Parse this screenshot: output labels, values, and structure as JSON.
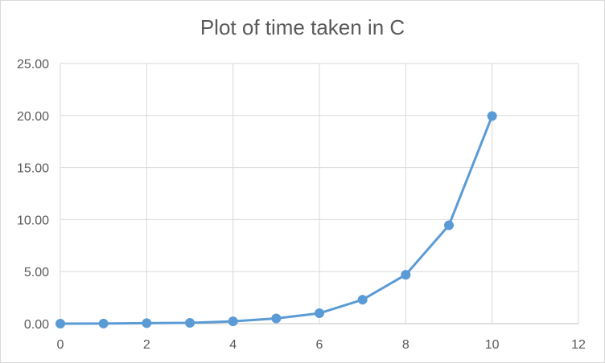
{
  "chart_data": {
    "type": "line",
    "title": "Plot of time taken in C",
    "xlabel": "",
    "ylabel": "",
    "xlim": [
      0,
      12
    ],
    "ylim": [
      0,
      25
    ],
    "x_ticks": [
      "0",
      "2",
      "4",
      "6",
      "8",
      "10",
      "12"
    ],
    "y_ticks": [
      "0.00",
      "5.00",
      "10.00",
      "15.00",
      "20.00",
      "25.00"
    ],
    "grid": true,
    "legend": "none",
    "series": [
      {
        "x": [
          0,
          1,
          2,
          3,
          4,
          5,
          6,
          7,
          8,
          9,
          10
        ],
        "y": [
          0.0,
          0.01,
          0.05,
          0.08,
          0.22,
          0.5,
          1.0,
          2.3,
          4.7,
          9.45,
          19.95
        ],
        "color": "#5b9bd5"
      }
    ]
  }
}
